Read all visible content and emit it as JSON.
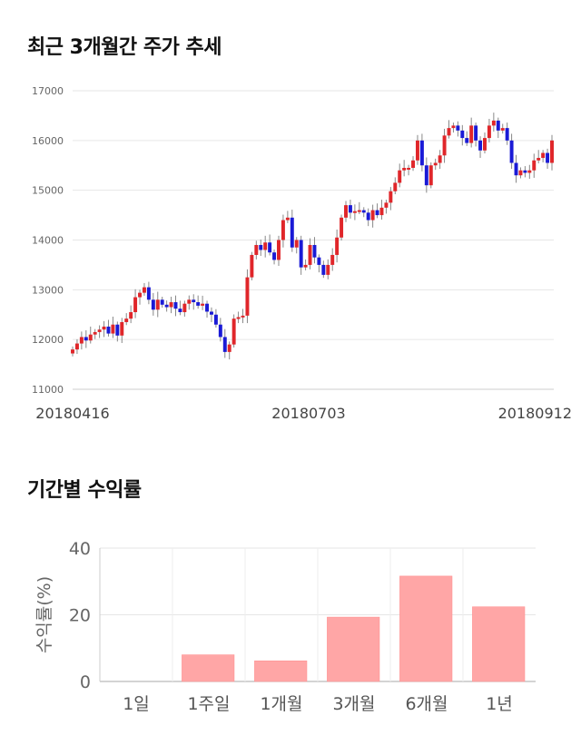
{
  "titles": {
    "stock": "최근 3개월간 주가 추세",
    "returns": "기간별 수익률"
  },
  "chart_data": [
    {
      "type": "candlestick",
      "title": "최근 3개월간 주가 추세",
      "ylim": [
        11000,
        17000
      ],
      "yticks": [
        11000,
        12000,
        13000,
        14000,
        15000,
        16000,
        17000
      ],
      "xticks": [
        "20180416",
        "20180703",
        "20180912"
      ],
      "grid": true,
      "colors": {
        "up": "#e0262a",
        "down": "#1a1ad6",
        "wick": "#888888"
      },
      "close": [
        11800,
        11920,
        12050,
        11980,
        12100,
        12150,
        12200,
        12260,
        12120,
        12300,
        12080,
        12350,
        12420,
        12550,
        12850,
        12940,
        13050,
        12800,
        12600,
        12800,
        12700,
        12650,
        12750,
        12620,
        12550,
        12720,
        12800,
        12750,
        12680,
        12720,
        12560,
        12500,
        12300,
        12050,
        11750,
        11900,
        12420,
        12450,
        12480,
        13250,
        13700,
        13900,
        13800,
        13950,
        13750,
        13600,
        14000,
        14400,
        14450,
        13850,
        14000,
        13450,
        13500,
        13900,
        13650,
        13500,
        13300,
        13500,
        13700,
        14050,
        14450,
        14700,
        14550,
        14580,
        14600,
        14550,
        14400,
        14600,
        14500,
        14650,
        14750,
        14980,
        15150,
        15400,
        15450,
        15450,
        15600,
        16000,
        15500,
        15100,
        15500,
        15550,
        15700,
        16100,
        16250,
        16300,
        16200,
        16050,
        15950,
        16300,
        16000,
        15800,
        16050,
        16300,
        16400,
        16200,
        16250,
        16000,
        15550,
        15300,
        15400,
        15350,
        15400,
        15600,
        15650,
        15750,
        15550,
        16000
      ]
    },
    {
      "type": "bar",
      "title": "기간별 수익률",
      "categories": [
        "1일",
        "1주일",
        "1개월",
        "3개월",
        "6개월",
        "1년"
      ],
      "values": [
        0.0,
        8.0,
        6.2,
        19.3,
        31.6,
        22.4
      ],
      "ylim": [
        0,
        40
      ],
      "yticks": [
        0,
        20,
        40
      ],
      "ylabel": "수익률(%)",
      "color": "#ffa6a6",
      "grid": true
    }
  ]
}
